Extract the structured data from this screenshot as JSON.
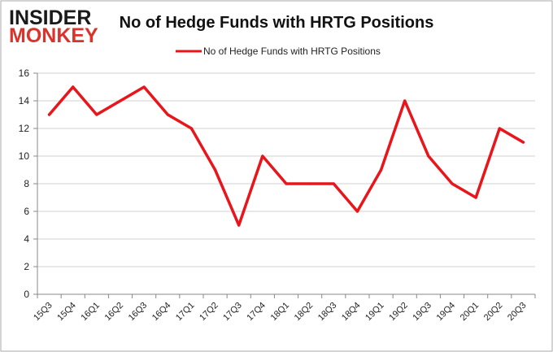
{
  "logo": {
    "line1": "INSIDER",
    "line2": "MONKEY",
    "color_dark": "#1a1a1a",
    "color_accent": "#d9332b"
  },
  "chart_data": {
    "type": "line",
    "title": "No of Hedge Funds with HRTG Positions",
    "xlabel": "",
    "ylabel": "",
    "ylim": [
      0,
      16
    ],
    "yticks": [
      0,
      2,
      4,
      6,
      8,
      10,
      12,
      14,
      16
    ],
    "grid": true,
    "legend_position": "top-center",
    "categories": [
      "15Q3",
      "15Q4",
      "16Q1",
      "16Q2",
      "16Q3",
      "16Q4",
      "17Q1",
      "17Q2",
      "17Q3",
      "17Q4",
      "18Q1",
      "18Q2",
      "18Q3",
      "18Q4",
      "19Q1",
      "19Q2",
      "19Q3",
      "19Q4",
      "20Q1",
      "20Q2",
      "20Q3"
    ],
    "series": [
      {
        "name": "No of Hedge Funds with HRTG  Positions",
        "color": "#e8161b",
        "values": [
          13,
          15,
          13,
          14,
          15,
          13,
          12,
          9,
          5,
          10,
          8,
          8,
          8,
          6,
          9,
          14,
          10,
          8,
          7,
          12,
          11
        ]
      }
    ]
  },
  "colors": {
    "background": "#ffffff",
    "gridline": "#d0d0d0",
    "axis": "#888888",
    "text": "#222222",
    "border": "#a8a8a8"
  }
}
